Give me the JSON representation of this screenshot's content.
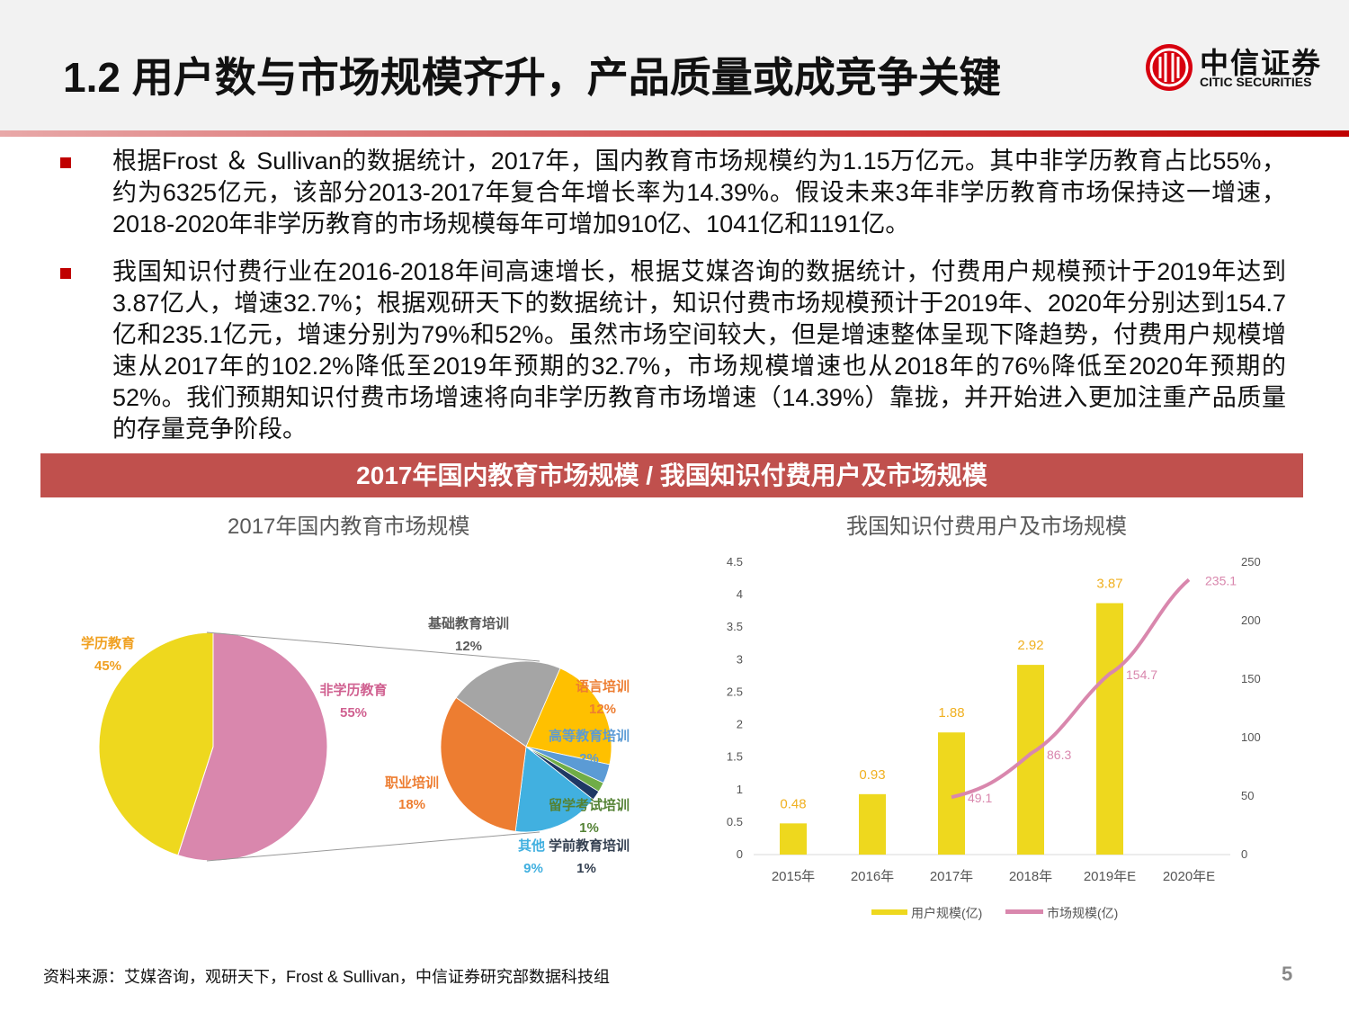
{
  "header": {
    "title": "1.2 用户数与市场规模齐升，产品质量或成竞争关键",
    "logo_cn": "中信证券",
    "logo_en": "CITIC SECURITIES"
  },
  "bullets": [
    "根据Frost ＆ Sullivan的数据统计，2017年，国内教育市场规模约为1.15万亿元。其中非学历教育占比55%，约为6325亿元，该部分2013-2017年复合年增长率为14.39%。假设未来3年非学历教育市场保持这一增速，2018-2020年非学历教育的市场规模每年可增加910亿、1041亿和1191亿。",
    "我国知识付费行业在2016-2018年间高速增长，根据艾媒咨询的数据统计，付费用户规模预计于2019年达到3.87亿人，增速32.7%；根据观研天下的数据统计，知识付费市场规模预计于2019年、2020年分别达到154.7亿和235.1亿元，增速分别为79%和52%。虽然市场空间较大，但是增速整体呈现下降趋势，付费用户规模增速从2017年的102.2%降低至2019年预期的32.7%，市场规模增速也从2018年的76%降低至2020年预期的52%。我们预期知识付费市场增速将向非学历教育市场增速（14.39%）靠拢，并开始进入更加注重产品质量的存量竞争阶段。"
  ],
  "banner": "2017年国内教育市场规模 / 我国知识付费用户及市场规模",
  "footer": {
    "source": "资料来源：艾媒咨询，观研天下，Frost & Sullivan，中信证券研究部数据科技组",
    "page": "5"
  },
  "chart_data": [
    {
      "type": "pie",
      "title": "2017年国内教育市场规模",
      "slices": [
        {
          "name": "学历教育",
          "value": 45,
          "label": "45%",
          "color": "#eed81e",
          "text_color": "#f0a020"
        },
        {
          "name": "非学历教育",
          "value": 55,
          "label": "55%",
          "color": "#d987ad",
          "text_color": "#d06090"
        }
      ],
      "sub_pie": {
        "of": "非学历教育",
        "slices": [
          {
            "name": "基础教育培训",
            "value": 12,
            "label": "12%",
            "color": "#a5a5a5",
            "text_color": "#595959"
          },
          {
            "name": "语言培训",
            "value": 12,
            "label": "12%",
            "color": "#ffc000",
            "text_color": "#ed7d31"
          },
          {
            "name": "高等教育培训",
            "value": 2,
            "label": "2%",
            "color": "#5b9bd5",
            "text_color": "#5b9bd5"
          },
          {
            "name": "留学考试培训",
            "value": 1,
            "label": "1%",
            "color": "#70ad47",
            "text_color": "#548235"
          },
          {
            "name": "学前教育培训",
            "value": 1,
            "label": "1%",
            "color": "#1f3864",
            "text_color": "#333f50"
          },
          {
            "name": "其他",
            "value": 9,
            "label": "9%",
            "color": "#41b0e0",
            "text_color": "#41b0e0"
          },
          {
            "name": "职业培训",
            "value": 18,
            "label": "18%",
            "color": "#ed7d31",
            "text_color": "#ed7d31"
          }
        ]
      }
    },
    {
      "type": "bar+line",
      "title": "我国知识付费用户及市场规模",
      "categories": [
        "2015年",
        "2016年",
        "2017年",
        "2018年",
        "2019年E",
        "2020年E"
      ],
      "series": [
        {
          "name": "用户规模(亿)",
          "type": "bar",
          "axis": "left",
          "color": "#eed81e",
          "values": [
            0.48,
            0.93,
            1.88,
            2.92,
            3.87,
            null
          ],
          "labels": [
            "0.48",
            "0.93",
            "1.88",
            "2.92",
            "3.87",
            ""
          ]
        },
        {
          "name": "市场规模(亿)",
          "type": "line",
          "axis": "right",
          "color": "#d987ad",
          "values": [
            null,
            null,
            49.1,
            86.3,
            154.7,
            235.1
          ],
          "labels": [
            "",
            "",
            "49.1",
            "86.3",
            "154.7",
            "235.1"
          ]
        }
      ],
      "y_left": {
        "range": [
          0,
          4.5
        ],
        "ticks": [
          "0",
          "0.5",
          "1",
          "1.5",
          "2",
          "2.5",
          "3",
          "3.5",
          "4",
          "4.5"
        ]
      },
      "y_right": {
        "range": [
          0,
          250
        ],
        "ticks": [
          "0",
          "50",
          "100",
          "150",
          "200",
          "250"
        ]
      },
      "legend": "bottom"
    }
  ]
}
